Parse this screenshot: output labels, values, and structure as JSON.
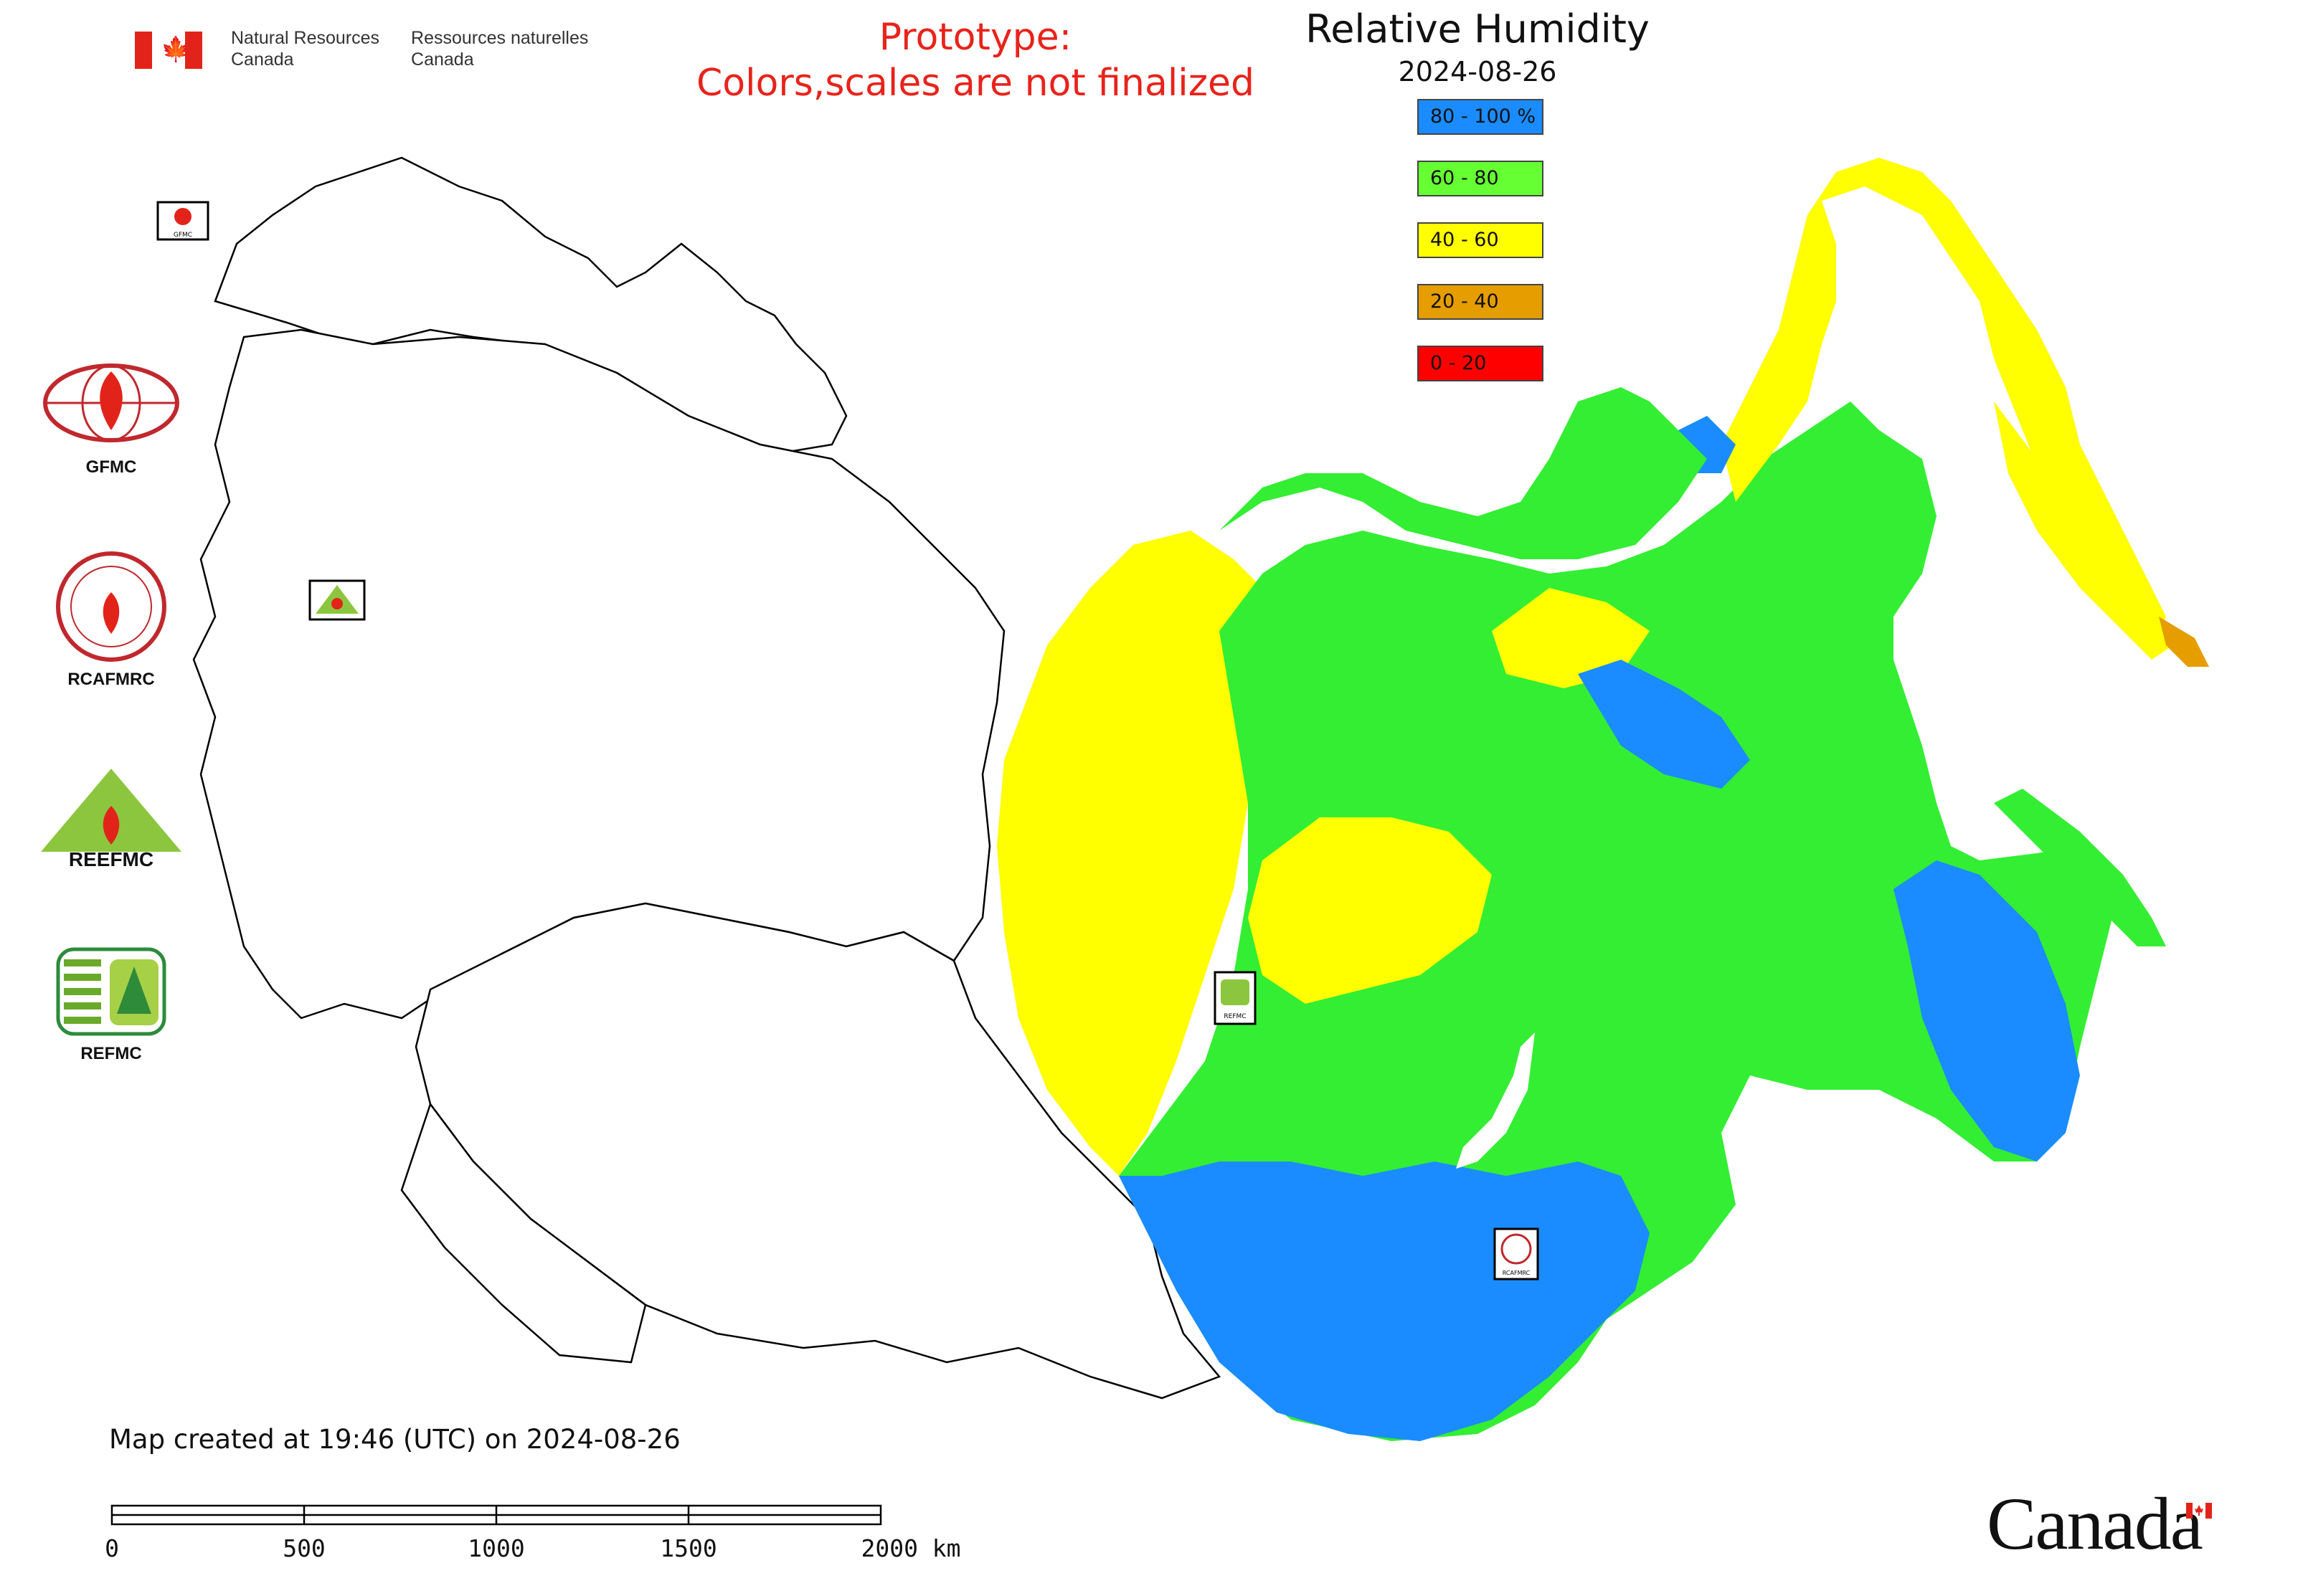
{
  "header": {
    "department_en": "Natural Resources\nCanada",
    "department_fr": "Ressources naturelles\nCanada",
    "flag_icon": "canada-flag-icon"
  },
  "notice": {
    "line1": "Prototype:",
    "line2": "Colors,scales are not finalized",
    "color": "#e8231b"
  },
  "map": {
    "title": "Relative Humidity",
    "date": "2024-08-26",
    "legend": [
      {
        "label": "80 - 100 %",
        "color": "#1a8cff"
      },
      {
        "label": "60 - 80",
        "color": "#66ff33"
      },
      {
        "label": "40 - 60",
        "color": "#ffff00"
      },
      {
        "label": "20 - 40",
        "color": "#e59d00"
      },
      {
        "label": "0 - 20",
        "color": "#ff0000"
      }
    ],
    "created_text": "Map created at 19:46 (UTC) on 2024-08-26",
    "scale_bar": {
      "labels": [
        "0",
        "500",
        "1000",
        "1500",
        "2000 km"
      ]
    },
    "markers": [
      {
        "label": "GFMC"
      },
      {
        "label": "REEFMC"
      },
      {
        "label": "REFMC"
      },
      {
        "label": "RCAFMRC"
      }
    ]
  },
  "side_logos": [
    {
      "caption": "GFMC",
      "icon": "gfmc-logo-icon"
    },
    {
      "caption": "RCAFMRC",
      "icon": "rcafmrc-logo-icon"
    },
    {
      "caption": "",
      "wordmark": "REEFMC",
      "icon": "reefmc-logo-icon"
    },
    {
      "caption": "REFMC",
      "icon": "refmc-logo-icon"
    }
  ],
  "footer": {
    "wordmark": "Canada"
  }
}
